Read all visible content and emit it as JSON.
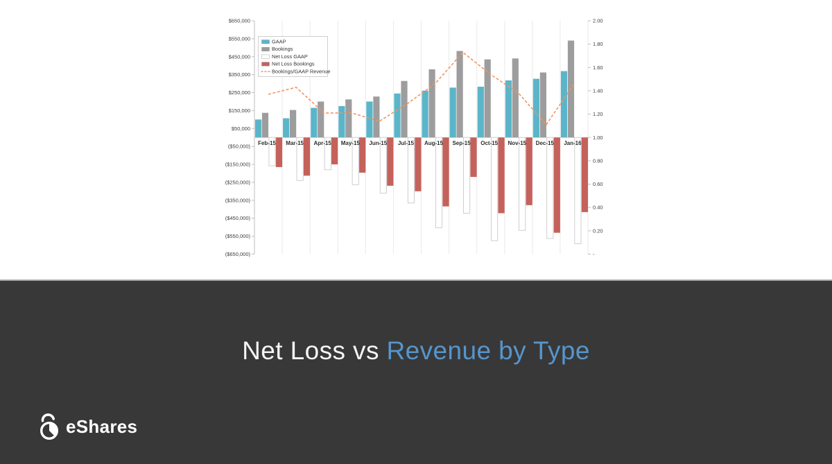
{
  "slide": {
    "title": {
      "prefix": "Net Loss vs ",
      "highlight": "Revenue by Type"
    },
    "brand": {
      "name": "eShares",
      "logo_icon": "lock-pie-icon"
    }
  },
  "colors": {
    "band_background": "#383838",
    "divider": "#a3a3a3",
    "title_text": "#f5f5f5",
    "title_highlight": "#5695CC",
    "gaap_bar": "#5BB5C9",
    "bookings_bar": "#9D9D9D",
    "net_loss_gaap_bar": "#FFFFFF",
    "net_loss_gaap_border": "#C9C9C9",
    "net_loss_bookings_bar": "#C5615B",
    "ratio_line": "#F4925F"
  },
  "chart_data": {
    "type": "bar",
    "subtype": "combo-bar-line",
    "title": "",
    "xlabel": "",
    "ylabel": "",
    "grid": {
      "vertical": true,
      "horizontal": false
    },
    "legend_position": "top-left",
    "categories": [
      "Feb-15",
      "Mar-15",
      "Apr-15",
      "May-15",
      "Jun-15",
      "Jul-15",
      "Aug-15",
      "Sep-15",
      "Oct-15",
      "Nov-15",
      "Dec-15",
      "Jan-16"
    ],
    "series": [
      {
        "name": "GAAP",
        "type": "bar",
        "axis": "left",
        "color": "#5BB5C9",
        "values": [
          100000,
          107000,
          165000,
          175000,
          200000,
          245000,
          261000,
          278000,
          283000,
          318000,
          327000,
          370000
        ]
      },
      {
        "name": "Bookings",
        "type": "bar",
        "axis": "left",
        "color": "#9D9D9D",
        "values": [
          137000,
          153000,
          200000,
          212000,
          228000,
          315000,
          380000,
          482000,
          435000,
          440000,
          362000,
          540000
        ]
      },
      {
        "name": "Net Loss GAAP",
        "type": "bar",
        "axis": "left",
        "color": "#FFFFFF",
        "border": "#C9C9C9",
        "values": [
          -158000,
          -240000,
          -180000,
          -263000,
          -310000,
          -365000,
          -503000,
          -422000,
          -575000,
          -518000,
          -563000,
          -592000
        ]
      },
      {
        "name": "Net Loss Bookings",
        "type": "bar",
        "axis": "left",
        "color": "#C5615B",
        "values": [
          -165000,
          -213000,
          -150000,
          -196000,
          -269000,
          -300000,
          -384000,
          -220000,
          -422000,
          -377000,
          -531000,
          -416000
        ]
      },
      {
        "name": "Bookings/GAAP Revenue",
        "type": "line",
        "style": "dashed",
        "axis": "right",
        "color": "#F4925F",
        "values": [
          1.37,
          1.43,
          1.21,
          1.21,
          1.14,
          1.29,
          1.46,
          1.73,
          1.54,
          1.38,
          1.11,
          1.46
        ]
      }
    ],
    "left_axis": {
      "min": -650000,
      "max": 650000,
      "step": 100000,
      "labels": [
        "$650,000",
        "$550,000",
        "$450,000",
        "$350,000",
        "$250,000",
        "$150,000",
        "$50,000",
        "($50,000)",
        "($150,000)",
        "($250,000)",
        "($350,000)",
        "($450,000)",
        "($550,000)",
        "($650,000)"
      ]
    },
    "right_axis": {
      "min": 0,
      "max": 2,
      "step": 0.2,
      "labels": [
        "2.00",
        "1.80",
        "1.60",
        "1.40",
        "1.20",
        "1.00",
        "0.80",
        "0.60",
        "0.40",
        "0.20",
        "-"
      ]
    }
  }
}
